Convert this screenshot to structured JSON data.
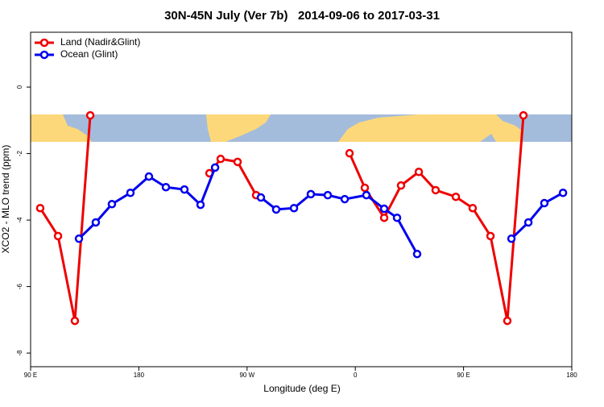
{
  "chart_data": {
    "type": "line",
    "title": "30N-45N July (Ver 7b)   2014-09-06 to 2017-03-31",
    "x_label": "Longitude (deg E)",
    "y_label": "XCO2 - MLO trend (ppm)",
    "xlim": [
      90,
      540
    ],
    "ylim": [
      -8.41,
      1.65
    ],
    "xticks": [
      {
        "value": 90,
        "label": "90 E"
      },
      180,
      {
        "value": 270,
        "label": "90 W"
      },
      {
        "value": 360,
        "label": "0"
      },
      {
        "value": 450,
        "label": "90 E"
      },
      {
        "value": 540,
        "label": "180"
      }
    ],
    "yticks": [
      0,
      -2,
      -4,
      -6,
      -8
    ],
    "legend": "top-left",
    "series": [
      {
        "name": "Land (Nadir&Glint)",
        "color": "#ee0000",
        "x": [
          98.0,
          112.8,
          126.8,
          139.6,
          null,
          238.7,
          248.0,
          262.1,
          277.5,
          null,
          355.2,
          367.9,
          384.0,
          398.0,
          412.8,
          426.8,
          443.6,
          457.6,
          472.4,
          486.4,
          499.8
        ],
        "values": [
          -3.64,
          -4.48,
          -7.03,
          -0.85,
          null,
          -2.59,
          -2.16,
          -2.25,
          -3.25,
          null,
          -1.99,
          -3.03,
          -3.93,
          -2.96,
          -2.55,
          -3.1,
          -3.3,
          -3.64,
          -4.48,
          -7.03,
          -0.85
        ]
      },
      {
        "name": "Ocean (Glint)",
        "color": "#0000ee",
        "x": [
          130.2,
          144.2,
          157.6,
          173.0,
          188.4,
          202.5,
          217.9,
          231.3,
          243.4,
          null,
          281.5,
          294.2,
          309.0,
          323.0,
          337.1,
          351.2,
          369.2,
          384.0,
          394.7,
          411.4,
          null,
          489.8,
          503.9,
          517.2,
          532.7
        ],
        "values": [
          -4.56,
          -4.07,
          -3.52,
          -3.18,
          -2.69,
          -3.01,
          -3.08,
          -3.54,
          -2.42,
          null,
          -3.32,
          -3.68,
          -3.64,
          -3.22,
          -3.25,
          -3.37,
          -3.25,
          -3.66,
          -3.93,
          -5.02,
          null,
          -4.56,
          -4.07,
          -3.49,
          -3.18
        ]
      }
    ]
  }
}
